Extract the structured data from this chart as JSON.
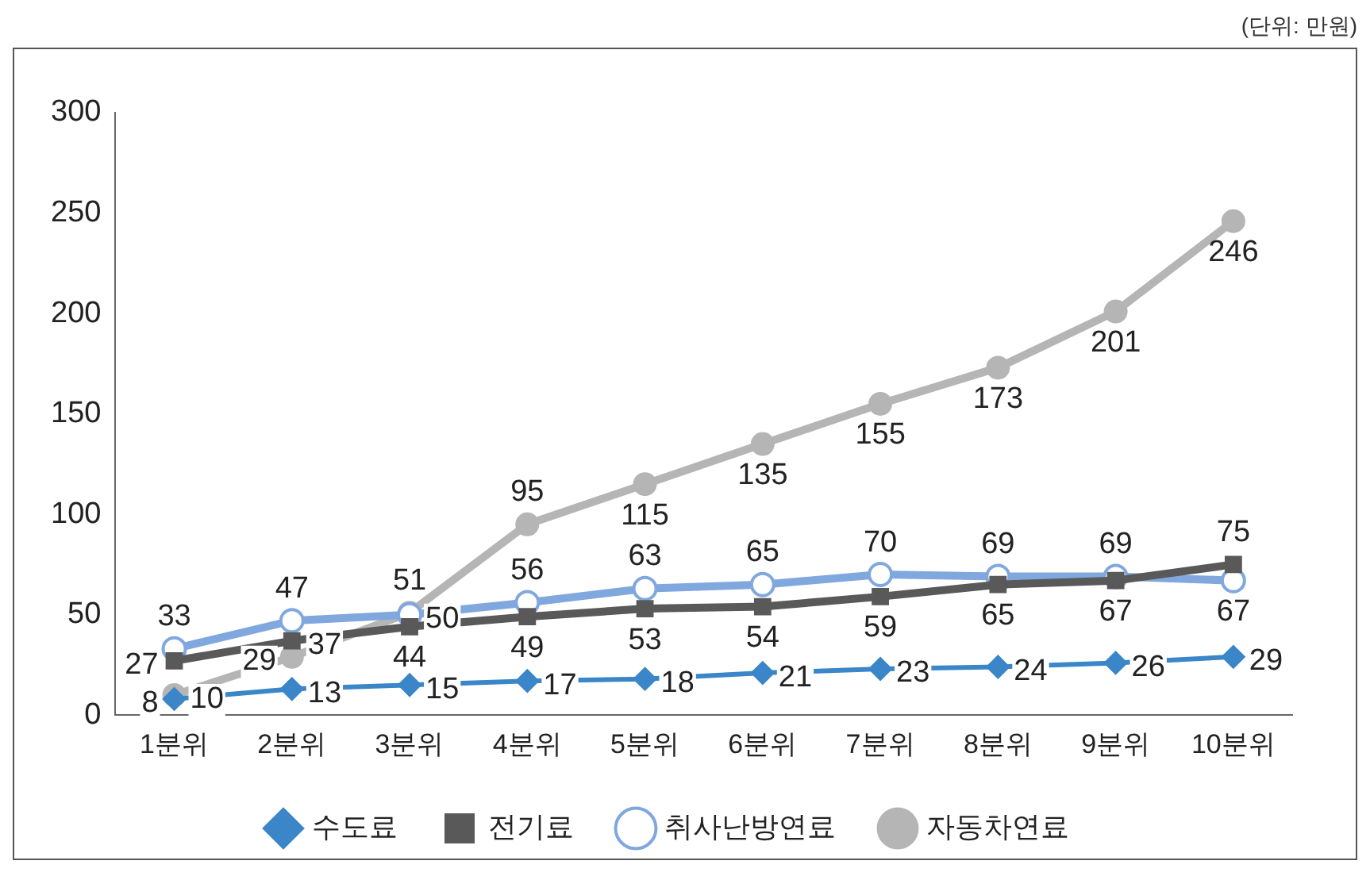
{
  "chart_data": {
    "type": "line",
    "annotations": [
      "(단위: 만원)"
    ],
    "categories": [
      "1분위",
      "2분위",
      "3분위",
      "4분위",
      "5분위",
      "6분위",
      "7분위",
      "8분위",
      "9분위",
      "10분위"
    ],
    "ylim": [
      0,
      300
    ],
    "yticks": [
      0,
      50,
      100,
      150,
      200,
      250,
      300
    ],
    "grid": false,
    "legend": "bottom",
    "data_labels": true,
    "line_style": "solid",
    "series": [
      {
        "name": "수도료",
        "color": "#3a86c8",
        "marker": "diamond",
        "values": [
          8,
          13,
          15,
          17,
          18,
          21,
          23,
          24,
          26,
          29
        ]
      },
      {
        "name": "전기료",
        "color": "#595959",
        "marker": "square",
        "values": [
          27,
          37,
          44,
          49,
          53,
          54,
          59,
          65,
          67,
          75
        ]
      },
      {
        "name": "취사난방연료",
        "color": "#80a8de",
        "marker": "circle",
        "values": [
          33,
          47,
          50,
          56,
          63,
          65,
          70,
          69,
          69,
          67
        ]
      },
      {
        "name": "자동차연료",
        "color": "#b5b5b5",
        "marker": "circle",
        "values": [
          10,
          29,
          51,
          95,
          115,
          135,
          155,
          173,
          201,
          246
        ]
      }
    ]
  }
}
